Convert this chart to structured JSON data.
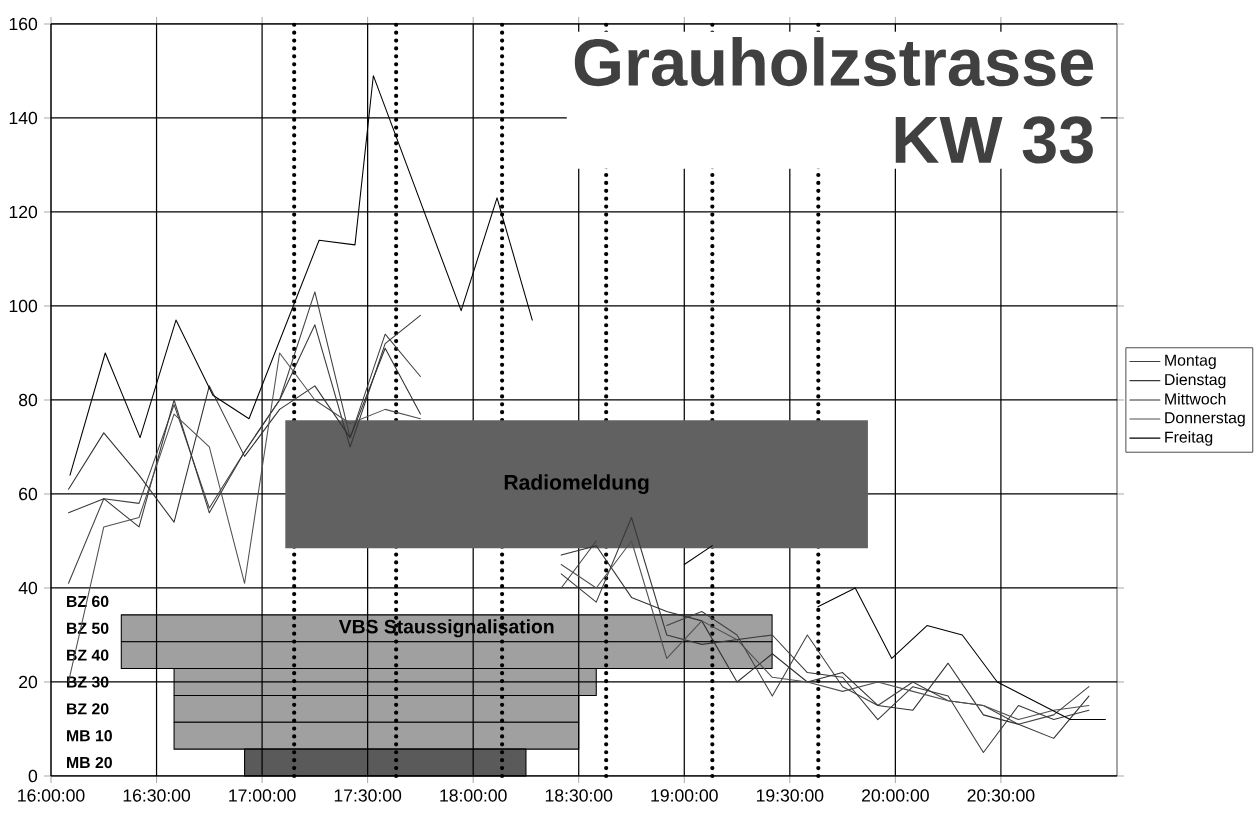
{
  "chart_data": [
    {
      "type": "line",
      "title": "Grauholzstrasse",
      "subtitle": "KW 33",
      "x": [
        16.083,
        16.25,
        16.417,
        16.583,
        16.75,
        16.917,
        17.083,
        17.25,
        17.417,
        17.583,
        17.75,
        17.917,
        18.083,
        18.25,
        18.417,
        18.583,
        18.75,
        18.917,
        19.083,
        19.25,
        19.417,
        19.583,
        19.75,
        19.917,
        20.083,
        20.25,
        20.417,
        20.583,
        20.75,
        20.917
      ],
      "xlim": [
        16,
        21.05
      ],
      "xticks": [
        {
          "value": 16,
          "label": "16:00:00"
        },
        {
          "value": 16.5,
          "label": "16:30:00"
        },
        {
          "value": 17,
          "label": "17:00:00"
        },
        {
          "value": 17.5,
          "label": "17:30:00"
        },
        {
          "value": 18,
          "label": "18:00:00"
        },
        {
          "value": 18.5,
          "label": "18:30:00"
        },
        {
          "value": 19,
          "label": "19:00:00"
        },
        {
          "value": 19.5,
          "label": "19:30:00"
        },
        {
          "value": 20,
          "label": "20:00:00"
        },
        {
          "value": 20.5,
          "label": "20:30:00"
        }
      ],
      "ylim": [
        0,
        160
      ],
      "yticks": [
        0,
        20,
        40,
        60,
        80,
        100,
        120,
        140,
        160
      ],
      "grid": true,
      "legend": "right",
      "series": [
        {
          "name": "Montag",
          "color": "#404040",
          "values": [
            41,
            59,
            58,
            79,
            57,
            69,
            80,
            103,
            72,
            94,
            85,
            null,
            null,
            null,
            40,
            50,
            null,
            32,
            35,
            30,
            17,
            30,
            19,
            15,
            20,
            16,
            15,
            11,
            13,
            19
          ]
        },
        {
          "name": "Dienstag",
          "color": "#383838",
          "values": [
            56,
            59,
            53,
            80,
            56,
            69,
            80,
            96,
            70,
            92,
            98,
            null,
            null,
            null,
            43,
            37,
            55,
            30,
            28,
            29,
            30,
            22,
            21,
            12,
            19,
            17,
            5,
            15,
            12,
            14
          ]
        },
        {
          "name": "Mittwoch",
          "color": "#303030",
          "values": [
            61,
            73,
            64,
            54,
            83,
            68,
            78,
            83,
            72,
            91,
            77,
            null,
            null,
            null,
            47,
            49,
            38,
            35,
            33,
            20,
            26,
            20,
            22,
            15,
            14,
            24,
            13,
            11,
            8,
            17
          ]
        },
        {
          "name": "Donnerstag",
          "color": "#505050",
          "values": [
            20,
            53,
            55,
            77,
            70,
            41,
            90,
            80,
            75,
            78,
            76,
            null,
            null,
            null,
            45,
            40,
            50,
            25,
            33,
            29,
            21,
            20,
            18,
            20,
            18,
            16,
            15,
            12,
            14,
            15
          ]
        },
        {
          "name": "Freitag",
          "color": "#000000",
          "x": [
            16.09,
            16.257,
            16.422,
            16.592,
            16.767,
            16.938,
            17.27,
            17.44,
            17.527,
            17.943,
            18.113,
            18.28,
            18.45,
            19.0,
            19.133,
            19.3,
            19.633,
            19.81,
            19.983,
            20.15,
            20.317,
            20.483,
            20.828,
            20.995
          ],
          "values": [
            64,
            90,
            72,
            97,
            81,
            76,
            114,
            113,
            149,
            99,
            123,
            97,
            null,
            45,
            49,
            null,
            36,
            40,
            25,
            32,
            30,
            20,
            12,
            12
          ]
        }
      ],
      "ref_lines": [
        {
          "axis": "x",
          "value": 17.152,
          "line_style": "dotted"
        },
        {
          "axis": "x",
          "value": 17.635,
          "line_style": "dotted"
        },
        {
          "axis": "x",
          "value": 18.137,
          "line_style": "dotted"
        },
        {
          "axis": "x",
          "value": 18.63,
          "line_style": "dotted"
        },
        {
          "axis": "x",
          "value": 19.133,
          "line_style": "dotted"
        },
        {
          "axis": "x",
          "value": 19.635,
          "line_style": "dotted"
        }
      ],
      "bands": [
        {
          "axis": "x",
          "from": 17.11,
          "to": 19.87,
          "label": "Radiomeldung",
          "color": "#616161"
        }
      ]
    },
    {
      "type": "bar",
      "orientation": "horizontal",
      "tick_labels": "y",
      "xlim": [
        16,
        21.05
      ],
      "categories": [
        "BZ 60",
        "BZ 50",
        "BZ 40",
        "BZ 30",
        "BZ 20",
        "MB 10",
        "MB 20"
      ],
      "base": [
        null,
        16.333,
        16.333,
        16.583,
        16.583,
        16.583,
        16.917
      ],
      "values": [
        null,
        3.083,
        3.083,
        2.0,
        1.917,
        1.917,
        1.333
      ],
      "colors": [
        "#a0a0a0",
        "#a0a0a0",
        "#a0a0a0",
        "#a0a0a0",
        "#a0a0a0",
        "#a0a0a0",
        "#5a5a5a"
      ],
      "annotations": [
        "VBS Staussignalisation"
      ]
    }
  ]
}
